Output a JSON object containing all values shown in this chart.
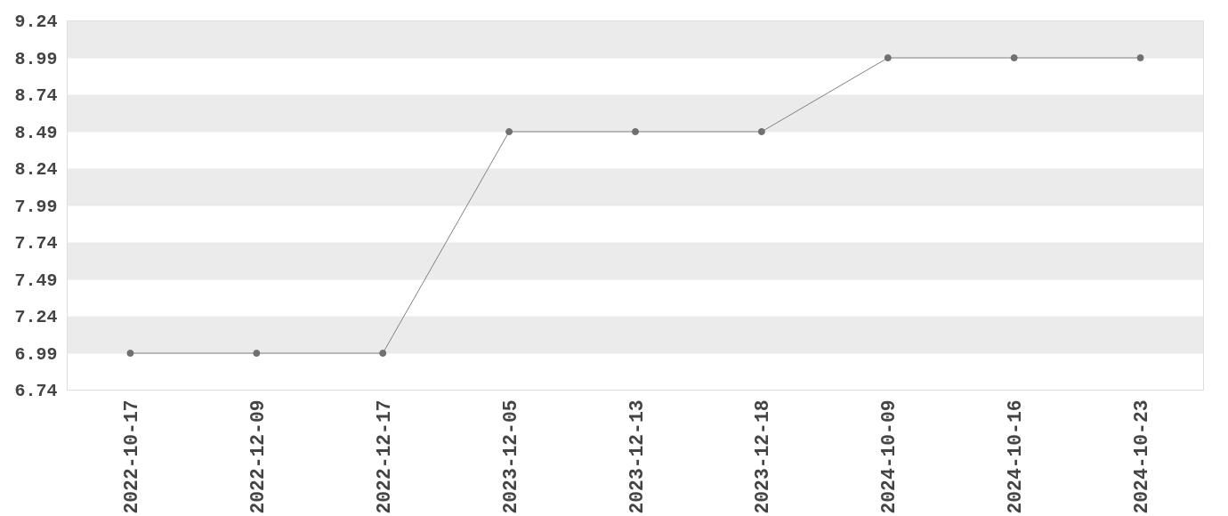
{
  "chart_data": {
    "type": "line",
    "categories": [
      "2022-10-17",
      "2022-12-09",
      "2022-12-17",
      "2023-12-05",
      "2023-12-13",
      "2023-12-18",
      "2024-10-09",
      "2024-10-16",
      "2024-10-23"
    ],
    "series": [
      {
        "color": "#808080",
        "values": [
          6.99,
          6.99,
          6.99,
          8.49,
          8.49,
          8.49,
          8.99,
          8.99,
          8.99
        ]
      }
    ],
    "ylim": [
      6.74,
      9.24
    ],
    "yticks": [
      6.74,
      6.99,
      7.24,
      7.49,
      7.74,
      7.99,
      8.24,
      8.49,
      8.74,
      8.99,
      9.24
    ],
    "grid": "y",
    "marker": "circle",
    "line_style": "solid"
  }
}
